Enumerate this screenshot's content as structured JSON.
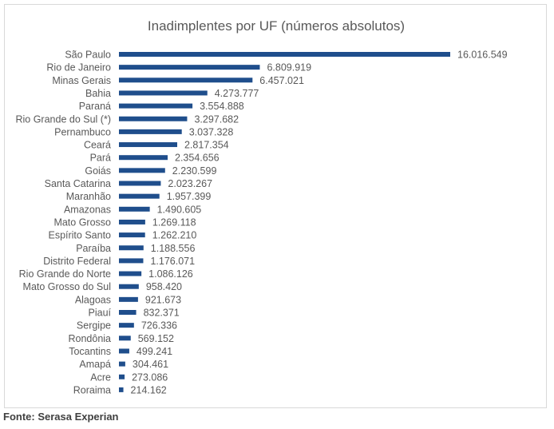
{
  "chart_data": {
    "type": "bar",
    "orientation": "horizontal",
    "title": "Inadimplentes por UF (números absolutos)",
    "bar_color": "#1f4e8c",
    "grid": false,
    "categories": [
      "São Paulo",
      "Rio de Janeiro",
      "Minas Gerais",
      "Bahia",
      "Paraná",
      "Rio Grande do Sul (*)",
      "Pernambuco",
      "Ceará",
      "Pará",
      "Goiás",
      "Santa Catarina",
      "Maranhão",
      "Amazonas",
      "Mato Grosso",
      "Espírito Santo",
      "Paraíba",
      "Distrito Federal",
      "Rio Grande do Norte",
      "Mato Grosso do Sul",
      "Alagoas",
      "Piauí",
      "Sergipe",
      "Rondônia",
      "Tocantins",
      "Amapá",
      "Acre",
      "Roraima"
    ],
    "values": [
      16016549,
      6809919,
      6457021,
      4273777,
      3554888,
      3297682,
      3037328,
      2817354,
      2354656,
      2230599,
      2023267,
      1957399,
      1490605,
      1269118,
      1262210,
      1188556,
      1176071,
      1086126,
      958420,
      921673,
      832371,
      726336,
      569152,
      499241,
      304461,
      273086,
      214162
    ],
    "value_labels": [
      "16.016.549",
      "6.809.919",
      "6.457.021",
      "4.273.777",
      "3.554.888",
      "3.297.682",
      "3.037.328",
      "2.817.354",
      "2.354.656",
      "2.230.599",
      "2.023.267",
      "1.957.399",
      "1.490.605",
      "1.269.118",
      "1.262.210",
      "1.188.556",
      "1.176.071",
      "1.086.126",
      "958.420",
      "921.673",
      "832.371",
      "726.336",
      "569.152",
      "499.241",
      "304.461",
      "273.086",
      "214.162"
    ]
  },
  "source": "Fonte: Serasa Experian"
}
